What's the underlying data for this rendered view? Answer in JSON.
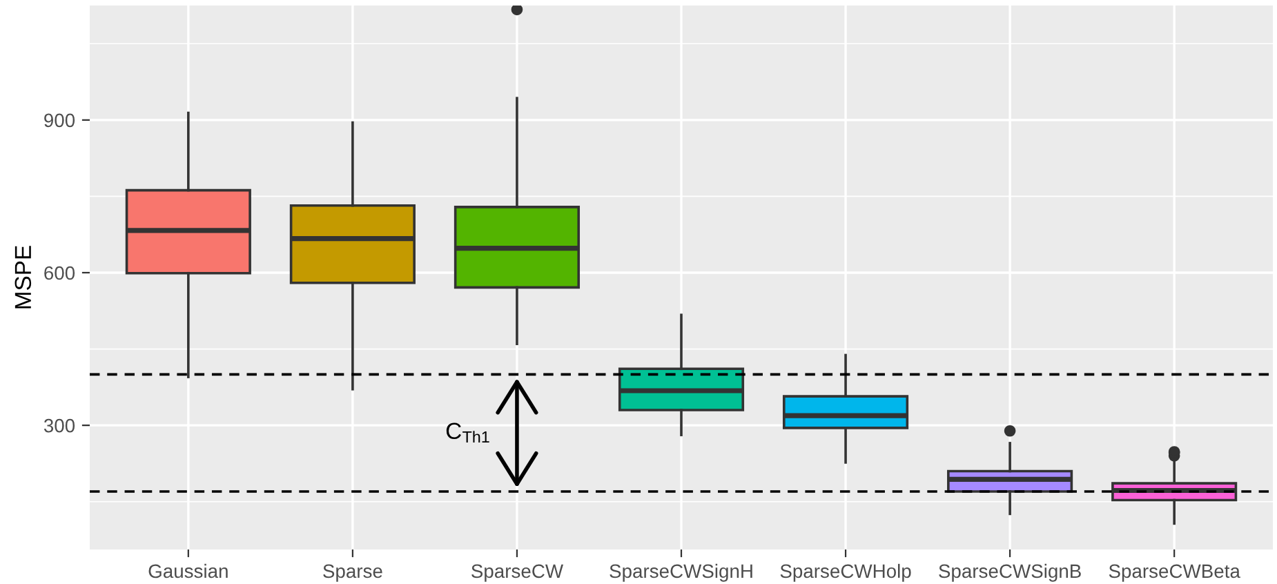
{
  "chart_data": {
    "type": "box",
    "ylabel": "MSPE",
    "categories": [
      "Gaussian",
      "Sparse",
      "SparseCW",
      "SparseCWSignH",
      "SparseCWHolp",
      "SparseCWSignB",
      "SparseCWBeta"
    ],
    "colors": [
      "#f8766d",
      "#c49a00",
      "#53b400",
      "#00c094",
      "#00b6eb",
      "#a58aff",
      "#fb61d7"
    ],
    "boxes": [
      {
        "low": 395,
        "q1": 599,
        "median": 683,
        "q3": 762,
        "high": 914
      },
      {
        "low": 371,
        "q1": 580,
        "median": 667,
        "q3": 732,
        "high": 895
      },
      {
        "low": 460,
        "q1": 571,
        "median": 648,
        "q3": 729,
        "high": 943,
        "outliers": [
          1117
        ]
      },
      {
        "low": 281,
        "q1": 330,
        "median": 368,
        "q3": 411,
        "high": 517
      },
      {
        "low": 227,
        "q1": 295,
        "median": 319,
        "q3": 357,
        "high": 438
      },
      {
        "low": 126,
        "q1": 170,
        "median": 194,
        "q3": 210,
        "high": 265,
        "outliers": [
          289
        ]
      },
      {
        "low": 107,
        "q1": 153,
        "median": 172,
        "q3": 186,
        "high": 229,
        "outliers": [
          240,
          246,
          248
        ]
      }
    ],
    "ylim": [
      56,
      1125
    ],
    "yticks": [
      300,
      600,
      900
    ],
    "grid": true,
    "ref_lines": [
      {
        "axis": "y",
        "value": 400,
        "line_style": "dashed",
        "color": "#000000"
      },
      {
        "axis": "y",
        "value": 170,
        "line_style": "dashed",
        "color": "#000000"
      }
    ],
    "annotations": [
      "C$_{Th1}$"
    ]
  }
}
